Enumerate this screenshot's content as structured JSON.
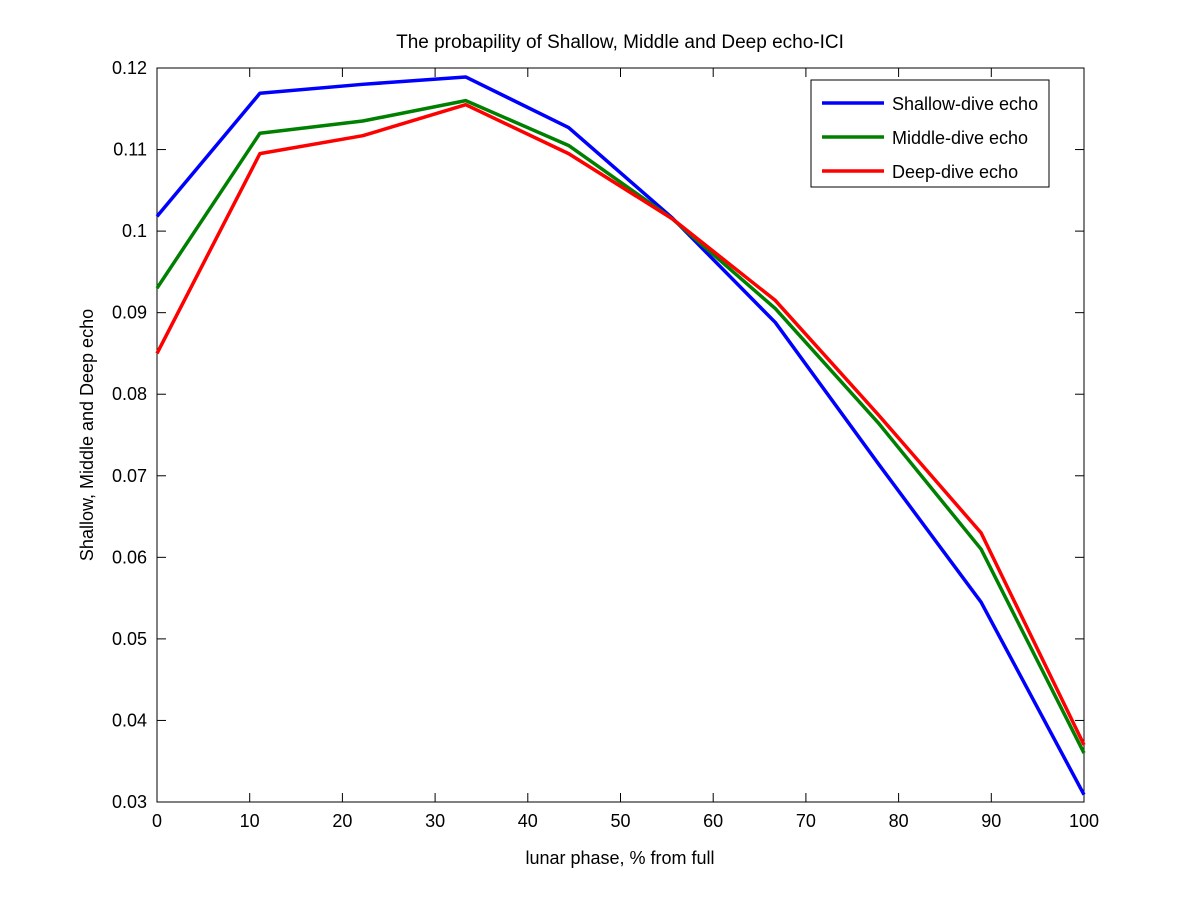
{
  "chart_data": {
    "type": "line",
    "title": "The probapility of Shallow, Middle and Deep echo-ICI",
    "xlabel": "lunar phase, % from full",
    "ylabel": "Shallow, Middle and Deep echo",
    "xlim": [
      0,
      100
    ],
    "ylim": [
      0.03,
      0.12
    ],
    "xticks": [
      0,
      10,
      20,
      30,
      40,
      50,
      60,
      70,
      80,
      90,
      100
    ],
    "xtick_labels": [
      "0",
      "10",
      "20",
      "30",
      "40",
      "50",
      "60",
      "70",
      "80",
      "90",
      "100"
    ],
    "yticks": [
      0.03,
      0.04,
      0.05,
      0.06,
      0.07,
      0.08,
      0.09,
      0.1,
      0.11,
      0.12
    ],
    "ytick_labels": [
      "0.03",
      "0.04",
      "0.05",
      "0.06",
      "0.07",
      "0.08",
      "0.09",
      "0.1",
      "0.11",
      "0.12"
    ],
    "grid": false,
    "legend_position": "top-right",
    "x": [
      0,
      11.1,
      22.2,
      33.3,
      44.4,
      55.6,
      66.7,
      77.8,
      88.9,
      100
    ],
    "series": [
      {
        "name": "Shallow-dive echo",
        "color": "#0000ff",
        "values": [
          0.1018,
          0.1169,
          0.118,
          0.1189,
          0.1127,
          0.1016,
          0.0888,
          0.0715,
          0.0545,
          0.0309
        ]
      },
      {
        "name": "Middle-dive echo",
        "color": "#008000",
        "values": [
          0.093,
          0.112,
          0.1135,
          0.116,
          0.1105,
          0.1015,
          0.0905,
          0.0765,
          0.061,
          0.036
        ]
      },
      {
        "name": "Deep-dive echo",
        "color": "#ff0000",
        "values": [
          0.085,
          0.1095,
          0.1117,
          0.1155,
          0.1095,
          0.1015,
          0.0915,
          0.0775,
          0.063,
          0.037
        ]
      }
    ]
  }
}
